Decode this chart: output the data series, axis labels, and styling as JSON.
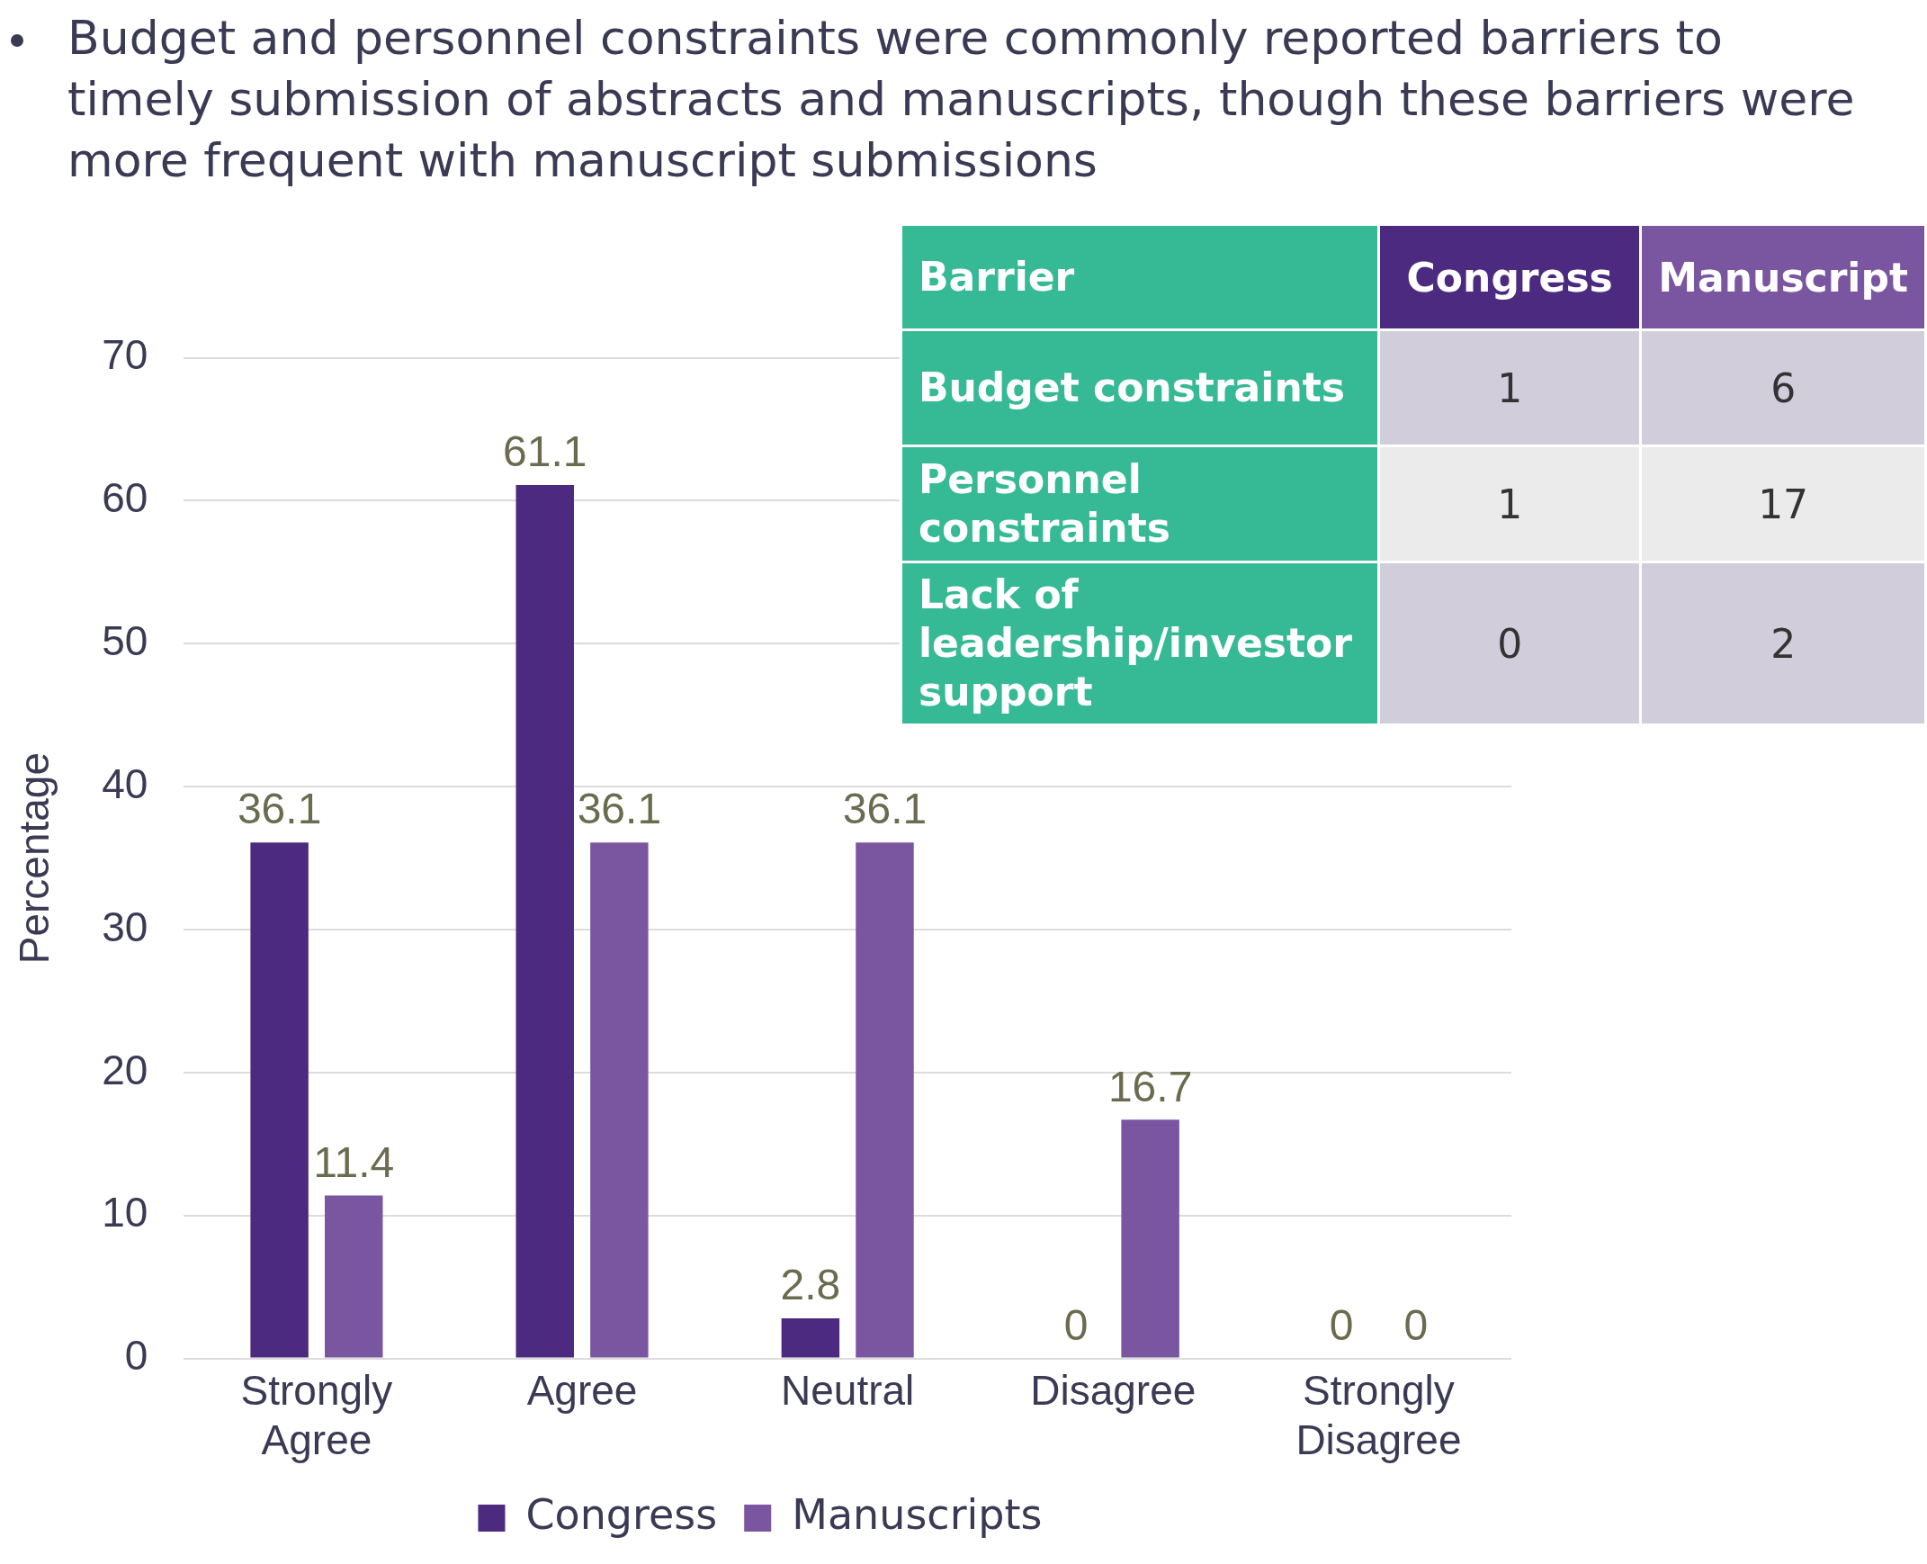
{
  "chart_data": [
    {
      "type": "bar",
      "title": "Budget and personnel constraints were commonly reported barriers to timely submission of abstracts and manuscripts, though these barriers were more frequent with manuscript submissions",
      "ylabel": "Percentage",
      "categories": [
        "Strongly Agree",
        "Agree",
        "Neutral",
        "Disagree",
        "Strongly Disagree"
      ],
      "series": [
        {
          "name": "Congress",
          "color": "#4b2a80",
          "values": [
            36.1,
            61.1,
            2.8,
            0,
            0
          ]
        },
        {
          "name": "Manuscripts",
          "color": "#7a55a0",
          "values": [
            11.4,
            36.1,
            36.1,
            16.7,
            0
          ]
        }
      ],
      "ylim": [
        0,
        70
      ],
      "yticks": [
        0,
        10,
        20,
        30,
        40,
        50,
        60,
        70
      ],
      "grid": "y",
      "legend": "bottom",
      "data_labels": true
    },
    {
      "type": "heatmap",
      "ylabel": "Barrier",
      "categories": [
        "Congress",
        "Manuscript"
      ],
      "y_categories": [
        "Budget constraints",
        "Personnel constraints",
        "Lack of leadership/investor support"
      ],
      "cells": [
        [
          1,
          6
        ],
        [
          1,
          17
        ],
        [
          0,
          2
        ]
      ],
      "data_labels": true
    }
  ]
}
